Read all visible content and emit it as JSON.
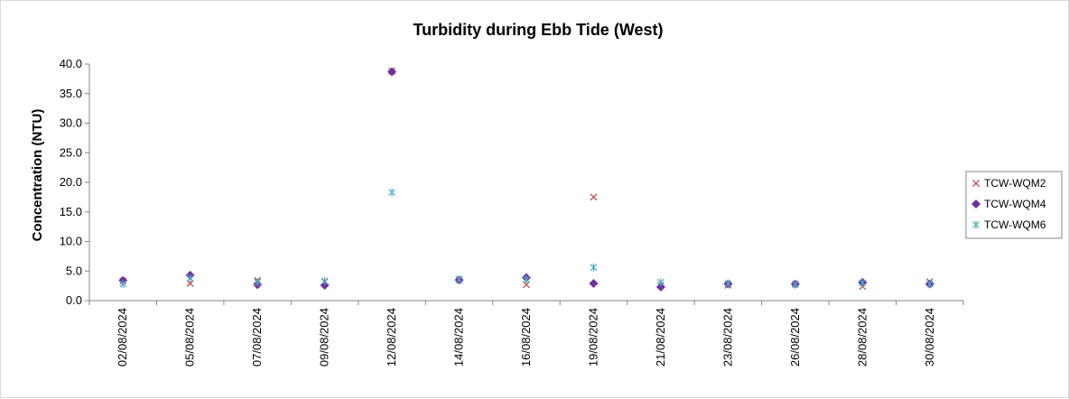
{
  "chart_data": {
    "type": "scatter",
    "title": "Turbidity during Ebb Tide (West)",
    "xlabel": "",
    "ylabel": "Concentration (NTU)",
    "ylim": [
      0,
      40
    ],
    "ytick_step": 5,
    "ytick_labels": [
      "0.0",
      "5.0",
      "10.0",
      "15.0",
      "20.0",
      "25.0",
      "30.0",
      "35.0",
      "40.0"
    ],
    "categories": [
      "02/08/2024",
      "05/08/2024",
      "07/08/2024",
      "09/08/2024",
      "12/08/2024",
      "14/08/2024",
      "16/08/2024",
      "19/08/2024",
      "21/08/2024",
      "23/08/2024",
      "26/08/2024",
      "28/08/2024",
      "30/08/2024"
    ],
    "grid": false,
    "legend_position": "right",
    "series": [
      {
        "name": "TCW-WQM2",
        "marker": "x",
        "color": "#c0504d",
        "values": [
          3.3,
          2.9,
          3.4,
          3.2,
          38.8,
          3.5,
          2.7,
          17.5,
          2.6,
          2.6,
          2.8,
          2.4,
          3.2
        ]
      },
      {
        "name": "TCW-WQM4",
        "marker": "diamond",
        "color": "#7030a0",
        "values": [
          3.4,
          4.3,
          2.7,
          2.6,
          38.7,
          3.5,
          3.9,
          2.9,
          2.3,
          2.8,
          2.8,
          3.1,
          2.8
        ]
      },
      {
        "name": "TCW-WQM6",
        "marker": "star",
        "color": "#4bacc6",
        "values": [
          2.8,
          3.8,
          3.1,
          3.3,
          18.3,
          3.6,
          3.6,
          5.6,
          3.1,
          2.9,
          2.7,
          3.0,
          2.8
        ]
      }
    ]
  }
}
